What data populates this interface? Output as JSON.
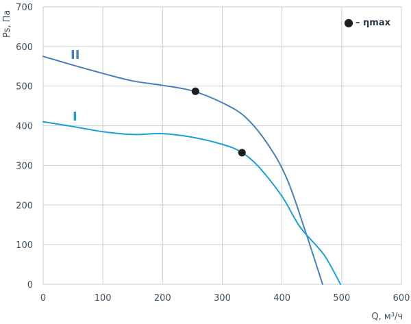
{
  "chart_data": {
    "type": "line",
    "xlabel": "Q, м³/ч",
    "ylabel": "Ps, Па",
    "xlim": [
      0,
      600
    ],
    "ylim": [
      0,
      700
    ],
    "x_ticks": [
      0,
      100,
      200,
      300,
      400,
      500,
      600
    ],
    "y_ticks": [
      0,
      100,
      200,
      300,
      400,
      500,
      600,
      700
    ],
    "grid": true,
    "legend_position": "top-right",
    "legend": {
      "marker": "●",
      "label": "– ηmax"
    },
    "series": [
      {
        "name": "II",
        "color": "#4a7fbf",
        "x": [
          0,
          50,
          100,
          150,
          200,
          250,
          300,
          340,
          380,
          410,
          440,
          468
        ],
        "y": [
          575,
          553,
          532,
          513,
          502,
          488,
          458,
          420,
          345,
          260,
          130,
          0
        ],
        "max_efficiency_point": {
          "x": 255,
          "y": 487
        }
      },
      {
        "name": "I",
        "color": "#1aa0dc",
        "x": [
          0,
          50,
          100,
          150,
          200,
          250,
          300,
          330,
          360,
          400,
          430,
          470,
          498
        ],
        "y": [
          410,
          398,
          385,
          378,
          380,
          371,
          353,
          335,
          298,
          222,
          145,
          75,
          0
        ],
        "max_efficiency_point": {
          "x": 333,
          "y": 332
        }
      }
    ]
  }
}
